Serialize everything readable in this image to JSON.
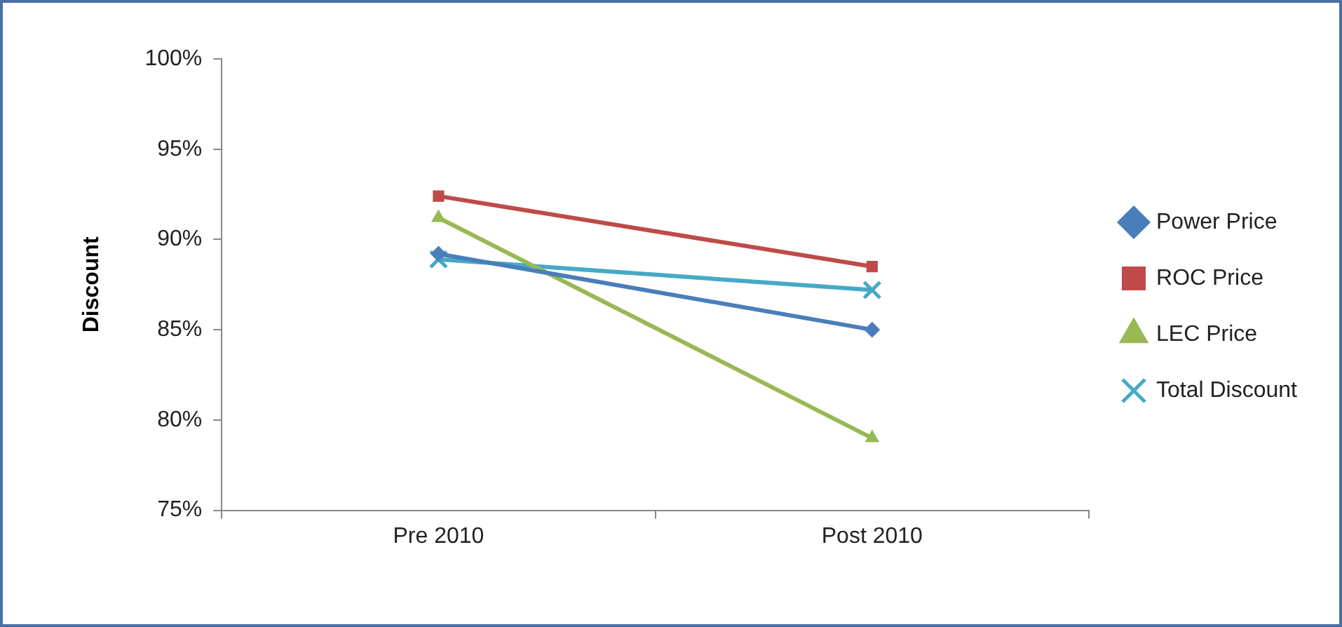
{
  "chart_data": {
    "type": "line",
    "ylabel": "Discount",
    "categories": [
      "Pre 2010",
      "Post 2010"
    ],
    "series": [
      {
        "name": "Power Price",
        "color": "#4a7ebb",
        "marker": "diamond",
        "values": [
          89.2,
          85.0
        ]
      },
      {
        "name": "ROC Price",
        "color": "#be4b48",
        "marker": "square",
        "values": [
          92.4,
          88.5
        ]
      },
      {
        "name": "LEC Price",
        "color": "#98b954",
        "marker": "triangle",
        "values": [
          91.2,
          79.0
        ]
      },
      {
        "name": "Total Discount",
        "color": "#46aac5",
        "marker": "cross",
        "values": [
          88.9,
          87.2
        ]
      }
    ],
    "ylim": [
      75,
      100
    ],
    "yticks": [
      {
        "value": 75,
        "label": "75%"
      },
      {
        "value": 80,
        "label": "80%"
      },
      {
        "value": 85,
        "label": "85%"
      },
      {
        "value": 90,
        "label": "90%"
      },
      {
        "value": 95,
        "label": "95%"
      },
      {
        "value": 100,
        "label": "100%"
      }
    ],
    "grid": false,
    "legend": "right",
    "line_style": "solid"
  }
}
